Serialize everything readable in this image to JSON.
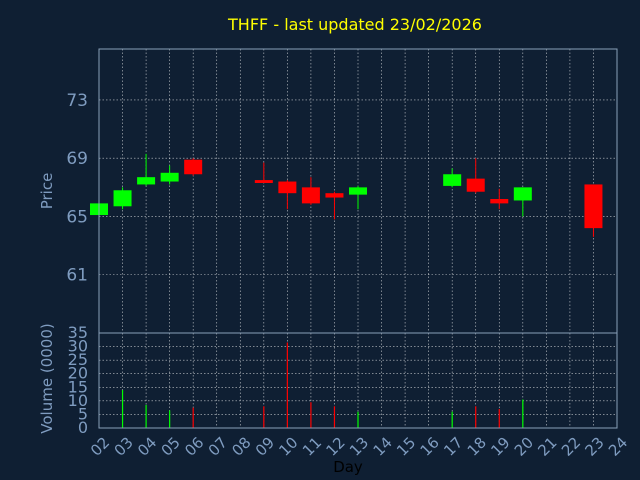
{
  "title": "THFF - last updated 23/02/2026",
  "colors": {
    "background": "#0f1f33",
    "title": "#ffff00",
    "axis_text": "#7f9cc0",
    "frame": "#8aa0ba",
    "grid": "#ffffff",
    "up": "#00ff00",
    "down": "#ff0000"
  },
  "chart_data": [
    {
      "type": "candlestick",
      "title": "THFF - last updated 23/02/2026",
      "ylabel": "Price",
      "ylim": [
        57,
        76.5
      ],
      "yticks": [
        61,
        65,
        69,
        73
      ],
      "x_categories": [
        "02",
        "03",
        "04",
        "05",
        "06",
        "07",
        "08",
        "09",
        "10",
        "11",
        "12",
        "13",
        "14",
        "15",
        "16",
        "17",
        "18",
        "19",
        "20",
        "21",
        "22",
        "23",
        "24"
      ],
      "grid": true,
      "candles": [
        {
          "day": "02",
          "open": 65.1,
          "close": 65.9,
          "high": 66.0,
          "low": 65.0
        },
        {
          "day": "03",
          "open": 65.7,
          "close": 66.8,
          "high": 67.0,
          "low": 65.5
        },
        {
          "day": "04",
          "open": 67.2,
          "close": 67.7,
          "high": 69.3,
          "low": 67.1
        },
        {
          "day": "05",
          "open": 67.4,
          "close": 68.0,
          "high": 68.5,
          "low": 67.2
        },
        {
          "day": "06",
          "open": 68.9,
          "close": 67.9,
          "high": 69.0,
          "low": 67.8
        },
        {
          "day": "09",
          "open": 67.5,
          "close": 67.3,
          "high": 68.7,
          "low": 67.3
        },
        {
          "day": "10",
          "open": 67.4,
          "close": 66.6,
          "high": 67.5,
          "low": 65.5
        },
        {
          "day": "11",
          "open": 67.0,
          "close": 65.9,
          "high": 67.7,
          "low": 65.8
        },
        {
          "day": "12",
          "open": 66.6,
          "close": 66.3,
          "high": 66.7,
          "low": 64.8
        },
        {
          "day": "13",
          "open": 66.5,
          "close": 67.0,
          "high": 67.1,
          "low": 65.5
        },
        {
          "day": "17",
          "open": 67.1,
          "close": 67.9,
          "high": 68.3,
          "low": 67.0
        },
        {
          "day": "18",
          "open": 67.6,
          "close": 66.7,
          "high": 69.0,
          "low": 66.6
        },
        {
          "day": "19",
          "open": 66.2,
          "close": 65.9,
          "high": 66.9,
          "low": 65.5
        },
        {
          "day": "20",
          "open": 66.1,
          "close": 67.0,
          "high": 67.0,
          "low": 65.0
        },
        {
          "day": "23",
          "open": 67.2,
          "close": 64.2,
          "high": 67.2,
          "low": 63.6
        }
      ]
    },
    {
      "type": "bar",
      "xlabel": "Day",
      "ylabel": "Volume (0000)",
      "ylim": [
        0,
        35
      ],
      "yticks": [
        0,
        5,
        10,
        15,
        20,
        25,
        30,
        35
      ],
      "x_categories": [
        "02",
        "03",
        "04",
        "05",
        "06",
        "07",
        "08",
        "09",
        "10",
        "11",
        "12",
        "13",
        "14",
        "15",
        "16",
        "17",
        "18",
        "19",
        "20",
        "21",
        "22",
        "23",
        "24"
      ],
      "grid": true,
      "bars": [
        {
          "day": "02",
          "value": 0,
          "direction": "up"
        },
        {
          "day": "03",
          "value": 14,
          "direction": "up"
        },
        {
          "day": "04",
          "value": 8.5,
          "direction": "up"
        },
        {
          "day": "05",
          "value": 6.5,
          "direction": "up"
        },
        {
          "day": "06",
          "value": 7.5,
          "direction": "down"
        },
        {
          "day": "09",
          "value": 8,
          "direction": "down"
        },
        {
          "day": "10",
          "value": 31.5,
          "direction": "down"
        },
        {
          "day": "11",
          "value": 9.5,
          "direction": "down"
        },
        {
          "day": "12",
          "value": 8,
          "direction": "down"
        },
        {
          "day": "13",
          "value": 6,
          "direction": "up"
        },
        {
          "day": "17",
          "value": 6,
          "direction": "up"
        },
        {
          "day": "18",
          "value": 8,
          "direction": "down"
        },
        {
          "day": "19",
          "value": 7,
          "direction": "down"
        },
        {
          "day": "20",
          "value": 10.5,
          "direction": "up"
        },
        {
          "day": "23",
          "value": 0,
          "direction": "down"
        }
      ]
    }
  ]
}
